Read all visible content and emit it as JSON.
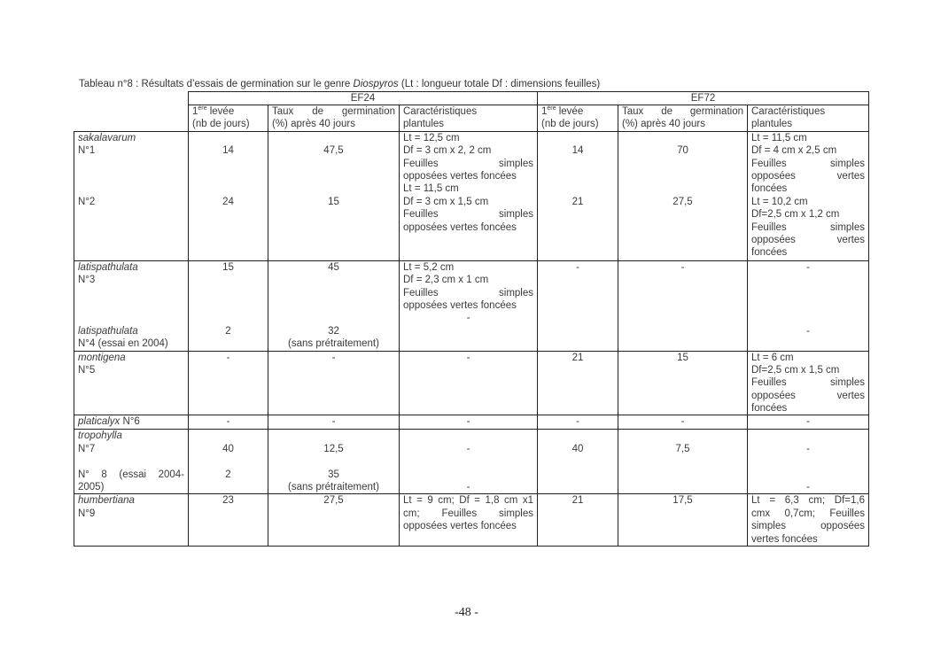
{
  "caption": {
    "prefix": "Tableau n°8 : Résultats d’essais de germination sur  le genre ",
    "genus": "Diospyros",
    "suffix": " (Lt : longueur totale Df : dimensions feuilles)"
  },
  "header": {
    "groups": [
      "EF24",
      "EF72"
    ],
    "columns": [
      {
        "sup_base": "1",
        "sup": "ère",
        "line1_rest": " levée",
        "line2": "(nb de jours)"
      },
      {
        "line1": "Taux  de  germination",
        "line2": "(%)  après 40 jours"
      },
      {
        "line1": "Caractéristiques",
        "line2": "plantules"
      }
    ]
  },
  "rows": [
    {
      "cells": [
        [
          {
            "t": "sakalavarum",
            "i": true
          },
          "N°1",
          "",
          "",
          "",
          "N°2",
          "",
          "",
          "",
          ""
        ],
        [
          "",
          "14",
          "",
          "",
          "",
          "24"
        ],
        [
          "",
          "47,5",
          "",
          "",
          "",
          "15"
        ],
        [
          "Lt = 12,5 cm",
          "Df = 3 cm x 2, 2 cm",
          "Feuilles simples",
          "opposées vertes foncées",
          "Lt = 11,5 cm",
          "Df = 3 cm x 1,5 cm",
          "Feuilles simples",
          "opposées vertes foncées"
        ],
        [
          "",
          "14",
          "",
          "",
          "",
          "21"
        ],
        [
          "",
          "70",
          "",
          "",
          "",
          "27,5"
        ],
        [
          "Lt = 11,5 cm",
          "Df = 4 cm x 2,5 cm",
          "Feuilles simples",
          "opposées vertes",
          "foncées",
          "Lt = 10,2 cm",
          "Df=2,5 cm x 1,2 cm",
          "Feuilles simples",
          "opposées vertes",
          "foncées"
        ]
      ]
    },
    {
      "cells": [
        [
          {
            "t": "latispathulata",
            "i": true
          },
          "N°3",
          "",
          "",
          "",
          {
            "t": "latispathulata",
            "i": true
          },
          "N°4 (essai en 2004)"
        ],
        [
          "15",
          "",
          "",
          "",
          "",
          "2"
        ],
        [
          "45",
          "",
          "",
          "",
          "",
          "32",
          "(sans prétraitement)"
        ],
        [
          "Lt = 5,2 cm",
          "Df = 2,3 cm x 1 cm",
          "Feuilles simples",
          "opposées vertes foncées",
          "-"
        ],
        [
          "-"
        ],
        [
          "-"
        ],
        [
          "-",
          "",
          "",
          "",
          "",
          "-"
        ]
      ]
    },
    {
      "cells": [
        [
          {
            "t": "montigena",
            "i": true
          },
          "N°5"
        ],
        [
          "-"
        ],
        [
          "-"
        ],
        [
          "-"
        ],
        [
          "21"
        ],
        [
          "15"
        ],
        [
          "Lt = 6 cm",
          "Df=2,5 cm x 1,5 cm",
          "Feuilles simples",
          "opposées vertes",
          "foncées"
        ]
      ]
    },
    {
      "cells": [
        [
          {
            "t": "platicalyx",
            "i": true,
            "s": " N°6"
          }
        ],
        [
          "-"
        ],
        [
          "-"
        ],
        [
          "-"
        ],
        [
          "-"
        ],
        [
          "-"
        ],
        [
          "-"
        ]
      ]
    },
    {
      "cells": [
        [
          {
            "t": "tropohylla",
            "i": true
          },
          "N°7",
          "",
          "N° 8 (essai 2004-",
          "2005)"
        ],
        [
          "",
          "40",
          "",
          "2"
        ],
        [
          "",
          "12,5",
          "",
          "35",
          "(sans prétraitement)"
        ],
        [
          "",
          "-",
          "",
          "",
          "-"
        ],
        [
          "",
          "40"
        ],
        [
          "",
          "7,5"
        ],
        [
          "",
          "-",
          "",
          "",
          "-"
        ]
      ]
    },
    {
      "cells": [
        [
          {
            "t": "humbertiana",
            "i": true
          },
          "N°9"
        ],
        [
          "23"
        ],
        [
          "27,5"
        ],
        [
          "Lt = 9 cm; Df = 1,8 cm x1",
          "cm; Feuilles simples",
          "opposées vertes foncées"
        ],
        [
          "21"
        ],
        [
          "17,5"
        ],
        [
          "Lt = 6,3 cm; Df=1,6",
          "cmx 0,7cm; Feuilles",
          "simples opposées",
          "vertes foncées"
        ]
      ]
    }
  ],
  "page_number": "-48 -"
}
